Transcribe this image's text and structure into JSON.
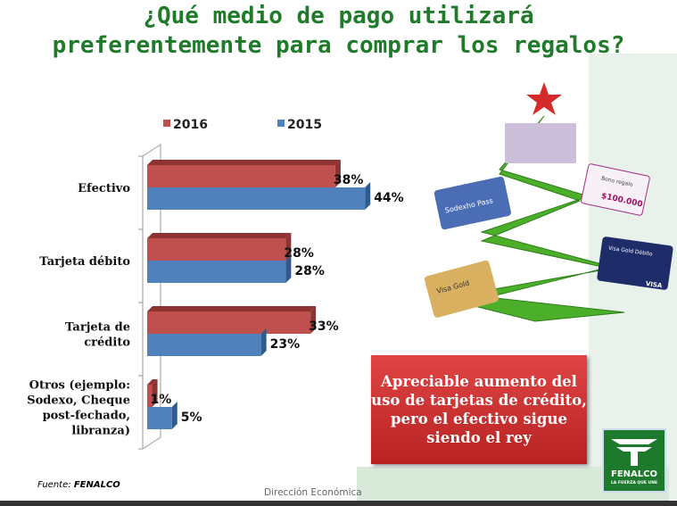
{
  "title_line1": "¿Qué medio de pago utilizará",
  "title_line2": "preferentemente para comprar los regalos?",
  "chart_data": {
    "type": "bar",
    "orientation": "horizontal",
    "categories": [
      "Efectivo",
      "Tarjeta débito",
      "Tarjeta de crédito",
      "Otros (ejemplo: Sodexo, Cheque post-fechado, libranza)"
    ],
    "category_lines": [
      [
        "Efectivo"
      ],
      [
        "Tarjeta débito"
      ],
      [
        "Tarjeta de",
        "crédito"
      ],
      [
        "Otros (ejemplo:",
        "Sodexo, Cheque",
        "post-fechado,",
        "libranza)"
      ]
    ],
    "series": [
      {
        "name": "2016",
        "color": "#c0504d",
        "values": [
          38,
          28,
          33,
          1
        ],
        "labels": [
          "38%",
          "28%",
          "33%",
          "1%"
        ]
      },
      {
        "name": "2015",
        "color": "#4f81bd",
        "values": [
          44,
          28,
          23,
          5
        ],
        "labels": [
          "44%",
          "28%",
          "23%",
          "5%"
        ]
      }
    ],
    "legend": "top",
    "grid": false,
    "xlim": [
      0,
      50
    ]
  },
  "callout": "Apreciable aumento del uso de tarjetas de crédito, pero el efectivo sigue siendo el rey",
  "source_label": "Fuente:",
  "source_name": "FENALCO",
  "footer": "Dirección Económica",
  "illustration": {
    "cards": [
      "Sodexho Pass",
      "Bono regalo",
      "$100.000",
      "Visa Gold",
      "Visa Gold Débito",
      "VISA"
    ]
  },
  "logo": {
    "name": "FENALCO",
    "slogan": "LA FUERZA QUE UNE"
  }
}
